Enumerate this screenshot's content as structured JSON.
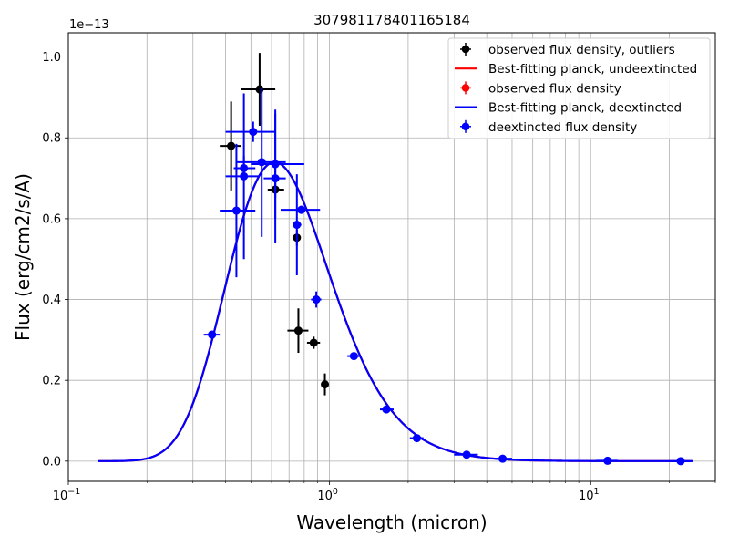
{
  "chart_data": {
    "type": "scatter",
    "title": "307981178401165184",
    "xlabel": "Wavelength (micron)",
    "ylabel": "Flux (erg/cm2/s/A)",
    "x_scale": "log",
    "xlim": [
      0.1,
      30
    ],
    "ylim": [
      -0.05,
      1.06
    ],
    "y_offset_text": "1e−13",
    "grid": true,
    "grid_minor_x": true,
    "legend_position": "top-right",
    "x_ticks": [
      {
        "value": 0.1,
        "base": "10",
        "exp": "−1"
      },
      {
        "value": 1,
        "base": "10",
        "exp": "0"
      },
      {
        "value": 10,
        "base": "10",
        "exp": "1"
      }
    ],
    "y_ticks": [
      {
        "value": 0.0,
        "label": "0.0"
      },
      {
        "value": 0.2,
        "label": "0.2"
      },
      {
        "value": 0.4,
        "label": "0.4"
      },
      {
        "value": 0.6,
        "label": "0.6"
      },
      {
        "value": 0.8,
        "label": "0.8"
      },
      {
        "value": 1.0,
        "label": "1.0"
      }
    ],
    "series": [
      {
        "name": "observed  flux density, outliers",
        "kind": "errorbar",
        "color": "#000000",
        "points": [
          {
            "x": 0.42,
            "y": 0.78,
            "xerr": [
              0.38,
              0.46
            ],
            "yerr": 0.11
          },
          {
            "x": 0.54,
            "y": 0.92,
            "xerr": [
              0.46,
              0.62
            ],
            "yerr": 0.09
          },
          {
            "x": 0.62,
            "y": 0.672,
            "xerr": [
              0.58,
              0.67
            ],
            "yerr": 0.02
          },
          {
            "x": 0.75,
            "y": 0.553,
            "xerr": [
              0.725,
              0.775
            ],
            "yerr": 0.02
          },
          {
            "x": 0.76,
            "y": 0.323,
            "xerr": [
              0.69,
              0.83
            ],
            "yerr": 0.055
          },
          {
            "x": 0.87,
            "y": 0.293,
            "xerr": [
              0.82,
              0.92
            ],
            "yerr": 0.015
          },
          {
            "x": 0.96,
            "y": 0.19,
            "xerr": [
              0.94,
              0.98
            ],
            "yerr": 0.027
          }
        ]
      },
      {
        "name": "Best-fitting planck, undeextincted",
        "kind": "line",
        "color": "#ff0000",
        "T": 4700,
        "peak": 0.74
      },
      {
        "name": "observed  flux density",
        "kind": "errorbar",
        "color": "#ff0000",
        "points": []
      },
      {
        "name": "Best-fitting planck, deextincted",
        "kind": "line",
        "color": "#0000ff",
        "T": 4700,
        "peak": 0.74
      },
      {
        "name": "deextincted  flux density",
        "kind": "errorbar",
        "color": "#0000ff",
        "points": [
          {
            "x": 0.355,
            "y": 0.313,
            "xerr": [
              0.33,
              0.38
            ],
            "yerr": 0.01
          },
          {
            "x": 0.44,
            "y": 0.62,
            "xerr": [
              0.38,
              0.52
            ],
            "yerr": 0.165
          },
          {
            "x": 0.47,
            "y": 0.705,
            "xerr": [
              0.4,
              0.54
            ],
            "yerr": 0.205
          },
          {
            "x": 0.47,
            "y": 0.725,
            "xerr": [
              0.43,
              0.52
            ],
            "yerr": 0.03
          },
          {
            "x": 0.51,
            "y": 0.815,
            "xerr": [
              0.4,
              0.62
            ],
            "yerr": 0.025
          },
          {
            "x": 0.55,
            "y": 0.74,
            "xerr": [
              0.44,
              0.68
            ],
            "yerr": 0.185
          },
          {
            "x": 0.62,
            "y": 0.7,
            "xerr": [
              0.56,
              0.68
            ],
            "yerr": 0.16
          },
          {
            "x": 0.62,
            "y": 0.735,
            "xerr": [
              0.5,
              0.8
            ],
            "yerr": 0.135
          },
          {
            "x": 0.75,
            "y": 0.585,
            "xerr": [
              0.73,
              0.78
            ],
            "yerr": 0.125
          },
          {
            "x": 0.78,
            "y": 0.622,
            "xerr": [
              0.65,
              0.92
            ],
            "yerr": 0.01
          },
          {
            "x": 0.89,
            "y": 0.4,
            "xerr": [
              0.85,
              0.93
            ],
            "yerr": 0.02
          },
          {
            "x": 1.24,
            "y": 0.26,
            "xerr": [
              1.17,
              1.31
            ],
            "yerr": 0.007
          },
          {
            "x": 1.65,
            "y": 0.128,
            "xerr": [
              1.56,
              1.76
            ],
            "yerr": 0.005
          },
          {
            "x": 2.16,
            "y": 0.057,
            "xerr": [
              2.03,
              2.29
            ],
            "yerr": 0.003
          },
          {
            "x": 3.35,
            "y": 0.016,
            "xerr": [
              3.0,
              3.7
            ],
            "yerr": 0.002
          },
          {
            "x": 4.6,
            "y": 0.006,
            "xerr": [
              4.2,
              5.0
            ],
            "yerr": 0.002
          },
          {
            "x": 11.6,
            "y": 0.001,
            "xerr": [
              10.5,
              12.7
            ],
            "yerr": 0.001
          },
          {
            "x": 22.1,
            "y": 0.0,
            "xerr": [
              20.0,
              24.5
            ],
            "yerr": 0.001
          }
        ]
      }
    ]
  }
}
